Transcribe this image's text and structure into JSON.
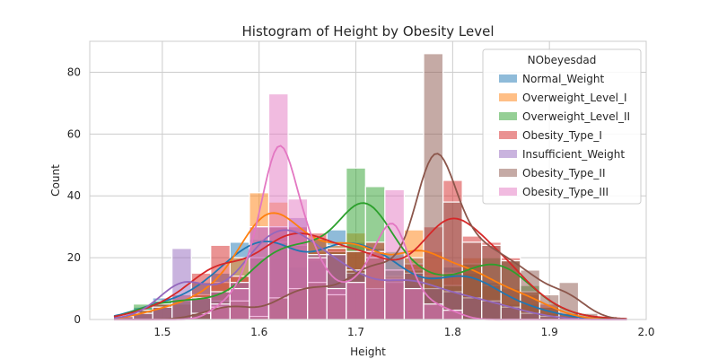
{
  "chart_data": {
    "type": "histogram",
    "title": "Histogram of Height by Obesity Level",
    "xlabel": "Height",
    "ylabel": "Count",
    "xlim": [
      1.425,
      2.0
    ],
    "ylim": [
      0,
      90
    ],
    "xticks": [
      "1.5",
      "1.6",
      "1.7",
      "1.8",
      "1.9",
      "2.0"
    ],
    "yticks": [
      "0",
      "20",
      "40",
      "60",
      "80"
    ],
    "grid": true,
    "legend": {
      "title": "NObeyesdad",
      "placement": "top-right"
    },
    "bins": {
      "start": 1.45,
      "width": 0.02,
      "count": 26
    },
    "series": [
      {
        "name": "Normal_Weight",
        "color": "#1f77b4",
        "counts": [
          1,
          4,
          7,
          5,
          12,
          15,
          25,
          26,
          30,
          17,
          19,
          29,
          25,
          23,
          21,
          11,
          10,
          17,
          15,
          12,
          5,
          5,
          2,
          1,
          0,
          0
        ]
      },
      {
        "name": "Overweight_Level_I",
        "color": "#ff7f0e",
        "counts": [
          0,
          2,
          4,
          5,
          8,
          12,
          20,
          41,
          38,
          30,
          22,
          24,
          28,
          22,
          14,
          29,
          22,
          15,
          20,
          11,
          10,
          8,
          4,
          1,
          0,
          0
        ]
      },
      {
        "name": "Overweight_Level_II",
        "color": "#2ca02c",
        "counts": [
          0,
          5,
          6,
          6,
          7,
          6,
          10,
          20,
          25,
          24,
          26,
          22,
          49,
          43,
          22,
          16,
          14,
          11,
          18,
          20,
          19,
          11,
          4,
          2,
          1,
          0
        ]
      },
      {
        "name": "Obesity_Type_I",
        "color": "#d62728",
        "counts": [
          1,
          3,
          5,
          8,
          15,
          24,
          14,
          20,
          30,
          30,
          28,
          23,
          22,
          25,
          12,
          18,
          30,
          45,
          27,
          25,
          20,
          9,
          5,
          2,
          0,
          1
        ]
      },
      {
        "name": "Insufficient_Weight",
        "color": "#9467bd",
        "counts": [
          0,
          2,
          4,
          23,
          7,
          9,
          12,
          30,
          30,
          33,
          21,
          21,
          15,
          10,
          13,
          15,
          10,
          9,
          7,
          6,
          4,
          2,
          1,
          0,
          0,
          0
        ]
      },
      {
        "name": "Obesity_Type_II",
        "color": "#8c564b",
        "counts": [
          0,
          0,
          0,
          0,
          2,
          4,
          6,
          1,
          7,
          10,
          12,
          8,
          16,
          20,
          16,
          20,
          86,
          38,
          25,
          24,
          19,
          16,
          8,
          12,
          2,
          0
        ]
      },
      {
        "name": "Obesity_Type_III",
        "color": "#e377c2",
        "counts": [
          0,
          0,
          0,
          0,
          0,
          5,
          10,
          30,
          73,
          39,
          20,
          10,
          12,
          22,
          42,
          10,
          5,
          3,
          0,
          0,
          0,
          0,
          0,
          0,
          0,
          0
        ]
      }
    ]
  }
}
